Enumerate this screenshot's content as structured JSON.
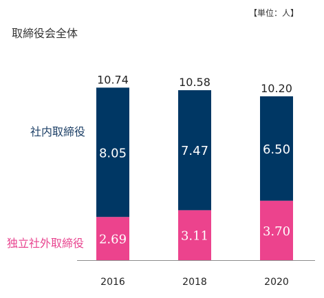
{
  "unit_label": "【単位：人】",
  "row_labels": {
    "total": "取締役会全体",
    "internal": "社内取締役",
    "external": "独立社外取締役"
  },
  "colors": {
    "internal": "#003764",
    "external": "#ec438d",
    "axis": "#8c8c8c",
    "text": "#222222"
  },
  "chart_data": {
    "type": "bar",
    "stacked": true,
    "categories": [
      "2016",
      "2018",
      "2020"
    ],
    "series": [
      {
        "name": "独立社外取締役",
        "values": [
          "2.69",
          "3.11",
          "3.70"
        ]
      },
      {
        "name": "社内取締役",
        "values": [
          "8.05",
          "7.47",
          "6.50"
        ]
      }
    ],
    "totals": [
      "10.74",
      "10.58",
      "10.20"
    ],
    "ylim": [
      0,
      12
    ],
    "grid": false,
    "legend": "left"
  }
}
